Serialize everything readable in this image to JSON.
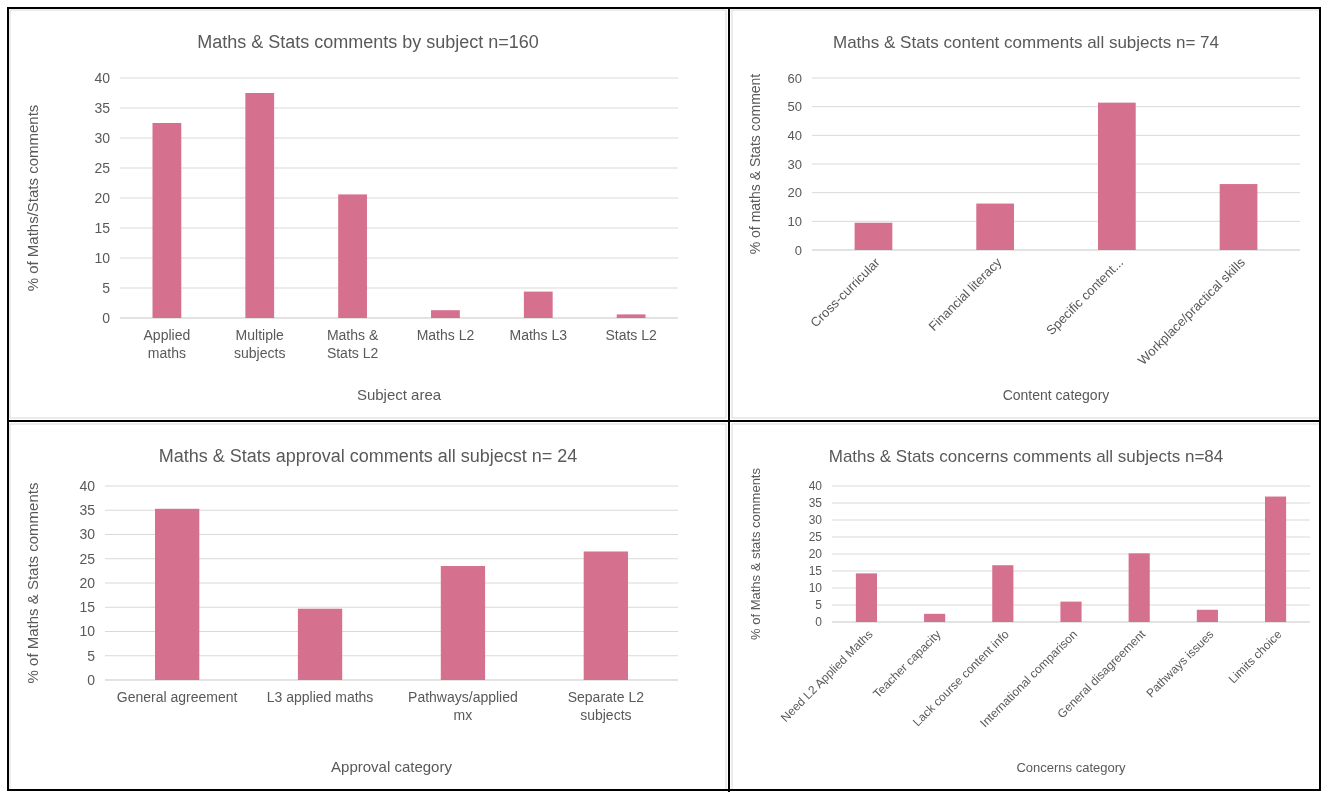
{
  "chart_data": [
    {
      "type": "bar",
      "title": "Maths & Stats comments by subject n=160",
      "xlabel": "Subject area",
      "ylabel": "% of Maths/Stats comments",
      "categories": [
        "Applied maths",
        "Multiple subjects",
        "Maths & Stats L2",
        "Maths L2",
        "Maths L3",
        "Stats L2"
      ],
      "values": [
        32.5,
        37.5,
        20.6,
        1.3,
        4.4,
        0.6
      ],
      "color": "#d5718f",
      "ylim": [
        0,
        40
      ],
      "yticks": [
        0,
        5,
        10,
        15,
        20,
        25,
        30,
        35,
        40
      ],
      "grid": "y"
    },
    {
      "type": "bar",
      "title": "Maths & Stats content comments all subjects n= 74",
      "xlabel": "Content category",
      "ylabel": "% of maths & Stats comment",
      "categories": [
        "Cross-curricular",
        "Financial literacy",
        "Specific content...",
        "Workplace/practical skills"
      ],
      "values": [
        9.5,
        16.2,
        51.4,
        23.0
      ],
      "color": "#d5718f",
      "ylim": [
        0,
        60
      ],
      "yticks": [
        0,
        10,
        20,
        30,
        40,
        50,
        60
      ],
      "grid": "y"
    },
    {
      "type": "bar",
      "title": "Maths & Stats approval comments all subjecst n= 24",
      "xlabel": "Approval category",
      "ylabel": "% of Maths & Stats comments",
      "categories": [
        "General agreement",
        "L3 applied maths",
        "Pathways/applied mx",
        "Separate L2 subjects"
      ],
      "values": [
        35.3,
        14.7,
        23.5,
        26.5
      ],
      "color": "#d5718f",
      "ylim": [
        0,
        40
      ],
      "yticks": [
        0,
        5,
        10,
        15,
        20,
        25,
        30,
        35,
        40
      ],
      "grid": "y"
    },
    {
      "type": "bar",
      "title": "Maths & Stats concerns comments all subjects n=84",
      "xlabel": "Concerns category",
      "ylabel": "% of Maths & stats comments",
      "categories": [
        "Need L2 Applied Maths",
        "Teacher capacity",
        "Lack course content info",
        "International comparison",
        "General disagreement",
        "Pathways issues",
        "Limits choice"
      ],
      "values": [
        14.3,
        2.4,
        16.7,
        6.0,
        20.2,
        3.6,
        36.9
      ],
      "color": "#d5718f",
      "ylim": [
        0,
        40
      ],
      "yticks": [
        0,
        5,
        10,
        15,
        20,
        25,
        30,
        35,
        40
      ],
      "grid": "y"
    }
  ]
}
